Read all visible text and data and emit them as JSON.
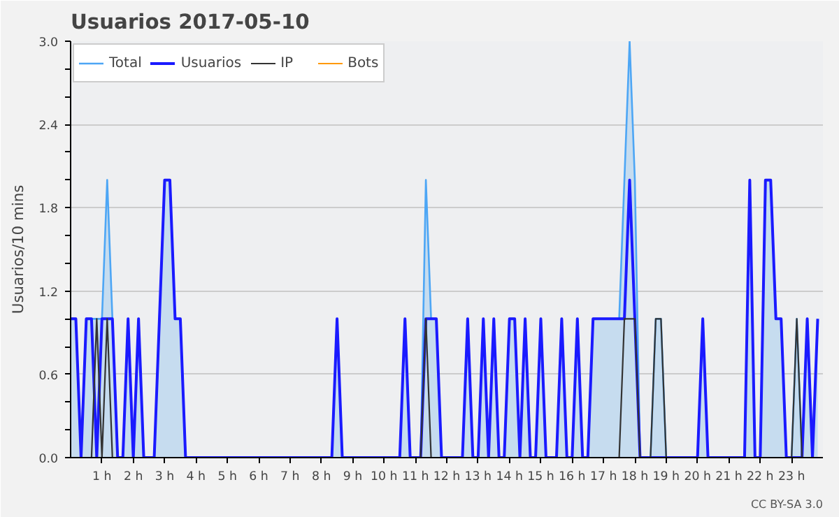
{
  "chart_data": {
    "type": "line",
    "title": "Usuarios  2017-05-10",
    "ylabel": "Usuarios/10 mins",
    "x": [
      0,
      0.1667,
      0.3333,
      0.5,
      0.6667,
      0.8333,
      1,
      1.1667,
      1.3333,
      1.5,
      1.6667,
      1.8333,
      2,
      2.1667,
      2.3333,
      2.5,
      2.6667,
      2.8333,
      3,
      3.1667,
      3.3333,
      3.5,
      3.6667,
      3.8333,
      4,
      4.1667,
      4.3333,
      4.5,
      4.6667,
      4.8333,
      5,
      5.1667,
      5.3333,
      5.5,
      5.6667,
      5.8333,
      6,
      6.1667,
      6.3333,
      6.5,
      6.6667,
      6.8333,
      7,
      7.1667,
      7.3333,
      7.5,
      7.6667,
      7.8333,
      8,
      8.1667,
      8.3333,
      8.5,
      8.6667,
      8.8333,
      9,
      9.1667,
      9.3333,
      9.5,
      9.6667,
      9.8333,
      10,
      10.1667,
      10.3333,
      10.5,
      10.6667,
      10.8333,
      11,
      11.1667,
      11.3333,
      11.5,
      11.6667,
      11.8333,
      12,
      12.1667,
      12.3333,
      12.5,
      12.6667,
      12.8333,
      13,
      13.1667,
      13.3333,
      13.5,
      13.6667,
      13.8333,
      14,
      14.1667,
      14.3333,
      14.5,
      14.6667,
      14.8333,
      15,
      15.1667,
      15.3333,
      15.5,
      15.6667,
      15.8333,
      16,
      16.1667,
      16.3333,
      16.5,
      16.6667,
      16.8333,
      17,
      17.1667,
      17.3333,
      17.5,
      17.6667,
      17.8333,
      18,
      18.1667,
      18.3333,
      18.5,
      18.6667,
      18.8333,
      19,
      19.1667,
      19.3333,
      19.5,
      19.6667,
      19.8333,
      20,
      20.1667,
      20.3333,
      20.5,
      20.6667,
      20.8333,
      21,
      21.1667,
      21.3333,
      21.5,
      21.6667,
      21.8333,
      22,
      22.1667,
      22.3333,
      22.5,
      22.6667,
      22.8333,
      23,
      23.1667,
      23.3333,
      23.5,
      23.6667,
      23.8333
    ],
    "series": [
      {
        "name": "Total",
        "type": "area",
        "color": "#4da6f5",
        "values": [
          1,
          1,
          0,
          1,
          1,
          1,
          1,
          2,
          1,
          0,
          0,
          1,
          0,
          1,
          0,
          0,
          0,
          1,
          2,
          2,
          1,
          1,
          0,
          0,
          0,
          0,
          0,
          0,
          0,
          0,
          0,
          0,
          0,
          0,
          0,
          0,
          0,
          0,
          0,
          0,
          0,
          0,
          0,
          0,
          0,
          0,
          0,
          0,
          0,
          0,
          0,
          1,
          0,
          0,
          0,
          0,
          0,
          0,
          0,
          0,
          0,
          0,
          0,
          0,
          1,
          0,
          0,
          0,
          2,
          1,
          1,
          0,
          0,
          0,
          0,
          0,
          1,
          0,
          0,
          1,
          0,
          1,
          0,
          0,
          1,
          1,
          0,
          1,
          0,
          0,
          1,
          0,
          0,
          0,
          1,
          0,
          0,
          1,
          0,
          0,
          1,
          1,
          1,
          1,
          1,
          1,
          2,
          3,
          2,
          0,
          0,
          0,
          1,
          1,
          0,
          0,
          0,
          0,
          0,
          0,
          0,
          1,
          0,
          0,
          0,
          0,
          0,
          0,
          0,
          0,
          2,
          0,
          0,
          2,
          2,
          1,
          1,
          0,
          0,
          1,
          0,
          1,
          0,
          1
        ]
      },
      {
        "name": "Usuarios",
        "color": "#1a1aff",
        "values": [
          1,
          1,
          0,
          1,
          1,
          0,
          1,
          1,
          1,
          0,
          0,
          1,
          0,
          1,
          0,
          0,
          0,
          1,
          2,
          2,
          1,
          1,
          0,
          0,
          0,
          0,
          0,
          0,
          0,
          0,
          0,
          0,
          0,
          0,
          0,
          0,
          0,
          0,
          0,
          0,
          0,
          0,
          0,
          0,
          0,
          0,
          0,
          0,
          0,
          0,
          0,
          1,
          0,
          0,
          0,
          0,
          0,
          0,
          0,
          0,
          0,
          0,
          0,
          0,
          1,
          0,
          0,
          0,
          1,
          1,
          1,
          0,
          0,
          0,
          0,
          0,
          1,
          0,
          0,
          1,
          0,
          1,
          0,
          0,
          1,
          1,
          0,
          1,
          0,
          0,
          1,
          0,
          0,
          0,
          1,
          0,
          0,
          1,
          0,
          0,
          1,
          1,
          1,
          1,
          1,
          1,
          1,
          2,
          1,
          0,
          0,
          0,
          0,
          0,
          0,
          0,
          0,
          0,
          0,
          0,
          0,
          1,
          0,
          0,
          0,
          0,
          0,
          0,
          0,
          0,
          2,
          0,
          0,
          2,
          2,
          1,
          1,
          0,
          0,
          0,
          0,
          1,
          0,
          1
        ]
      },
      {
        "name": "IP",
        "color": "#333333",
        "values": [
          0,
          0,
          0,
          0,
          0,
          1,
          0,
          1,
          0,
          0,
          0,
          0,
          0,
          0,
          0,
          0,
          0,
          0,
          0,
          0,
          0,
          0,
          0,
          0,
          0,
          0,
          0,
          0,
          0,
          0,
          0,
          0,
          0,
          0,
          0,
          0,
          0,
          0,
          0,
          0,
          0,
          0,
          0,
          0,
          0,
          0,
          0,
          0,
          0,
          0,
          0,
          0,
          0,
          0,
          0,
          0,
          0,
          0,
          0,
          0,
          0,
          0,
          0,
          0,
          0,
          0,
          0,
          0,
          1,
          0,
          0,
          0,
          0,
          0,
          0,
          0,
          0,
          0,
          0,
          0,
          0,
          0,
          0,
          0,
          0,
          0,
          0,
          0,
          0,
          0,
          0,
          0,
          0,
          0,
          0,
          0,
          0,
          0,
          0,
          0,
          0,
          0,
          0,
          0,
          0,
          0,
          1,
          1,
          1,
          0,
          0,
          0,
          1,
          1,
          0,
          0,
          0,
          0,
          0,
          0,
          0,
          0,
          0,
          0,
          0,
          0,
          0,
          0,
          0,
          0,
          0,
          0,
          0,
          0,
          0,
          0,
          0,
          0,
          0,
          1,
          0,
          0,
          0,
          0
        ]
      },
      {
        "name": "Bots",
        "color": "#ff9900",
        "values": [
          null,
          null,
          null,
          null,
          null,
          null,
          null,
          null,
          null,
          null,
          null,
          null,
          null,
          null,
          null,
          null,
          null,
          null,
          null,
          null,
          null,
          null,
          null,
          null,
          null,
          null,
          null,
          null,
          null,
          null,
          null,
          null,
          null,
          null,
          null,
          null,
          null,
          null,
          null,
          null,
          null,
          null,
          null,
          null,
          null,
          null,
          null,
          null,
          null,
          null,
          null,
          null,
          null,
          null,
          null,
          null,
          null,
          null,
          null,
          null,
          null,
          null,
          null,
          null,
          null,
          null,
          null,
          null,
          null,
          null,
          null,
          null,
          null,
          null,
          null,
          null,
          null,
          null,
          null,
          null,
          null,
          null,
          null,
          null,
          null,
          null,
          null,
          null,
          null,
          null,
          null,
          null,
          null,
          null,
          null,
          null,
          null,
          null,
          null,
          null,
          null,
          null,
          null,
          null,
          null,
          null,
          null,
          null,
          null,
          null,
          null,
          null,
          null,
          null,
          null,
          null,
          null,
          null,
          null,
          null,
          null,
          null,
          null,
          null,
          null,
          null,
          null,
          null,
          null,
          null,
          null,
          null,
          null,
          null,
          null,
          null,
          null,
          null,
          null,
          null,
          null,
          null,
          null,
          null
        ]
      }
    ],
    "xlim": [
      0,
      24
    ],
    "xticks": [
      {
        "value": 1,
        "label": "1 h"
      },
      {
        "value": 2,
        "label": "2 h"
      },
      {
        "value": 3,
        "label": "3 h"
      },
      {
        "value": 4,
        "label": "4 h"
      },
      {
        "value": 5,
        "label": "5 h"
      },
      {
        "value": 6,
        "label": "6 h"
      },
      {
        "value": 7,
        "label": "7 h"
      },
      {
        "value": 8,
        "label": "8 h"
      },
      {
        "value": 9,
        "label": "9 h"
      },
      {
        "value": 10,
        "label": "10 h"
      },
      {
        "value": 11,
        "label": "11 h"
      },
      {
        "value": 12,
        "label": "12 h"
      },
      {
        "value": 13,
        "label": "13 h"
      },
      {
        "value": 14,
        "label": "14 h"
      },
      {
        "value": 15,
        "label": "15 h"
      },
      {
        "value": 16,
        "label": "16 h"
      },
      {
        "value": 17,
        "label": "17 h"
      },
      {
        "value": 18,
        "label": "18 h"
      },
      {
        "value": 19,
        "label": "19 h"
      },
      {
        "value": 20,
        "label": "20 h"
      },
      {
        "value": 21,
        "label": "21 h"
      },
      {
        "value": 22,
        "label": "22 h"
      },
      {
        "value": 23,
        "label": "23 h"
      }
    ],
    "ylim": [
      0,
      3
    ],
    "yticks": [
      {
        "value": 0,
        "label": "0.0"
      },
      {
        "value": 0.2,
        "label": null
      },
      {
        "value": 0.4,
        "label": null
      },
      {
        "value": 0.6,
        "label": "0.6"
      },
      {
        "value": 0.8,
        "label": null
      },
      {
        "value": 1,
        "label": null
      },
      {
        "value": 1.2,
        "label": "1.2"
      },
      {
        "value": 1.4,
        "label": null
      },
      {
        "value": 1.6,
        "label": null
      },
      {
        "value": 1.8,
        "label": "1.8"
      },
      {
        "value": 2,
        "label": null
      },
      {
        "value": 2.2,
        "label": null
      },
      {
        "value": 2.4,
        "label": "2.4"
      },
      {
        "value": 2.6,
        "label": null
      },
      {
        "value": 2.8,
        "label": null
      },
      {
        "value": 3,
        "label": "3.0"
      }
    ],
    "grid": "y",
    "legend": "top left",
    "annotations": [
      "CC BY-SA 3.0"
    ]
  }
}
